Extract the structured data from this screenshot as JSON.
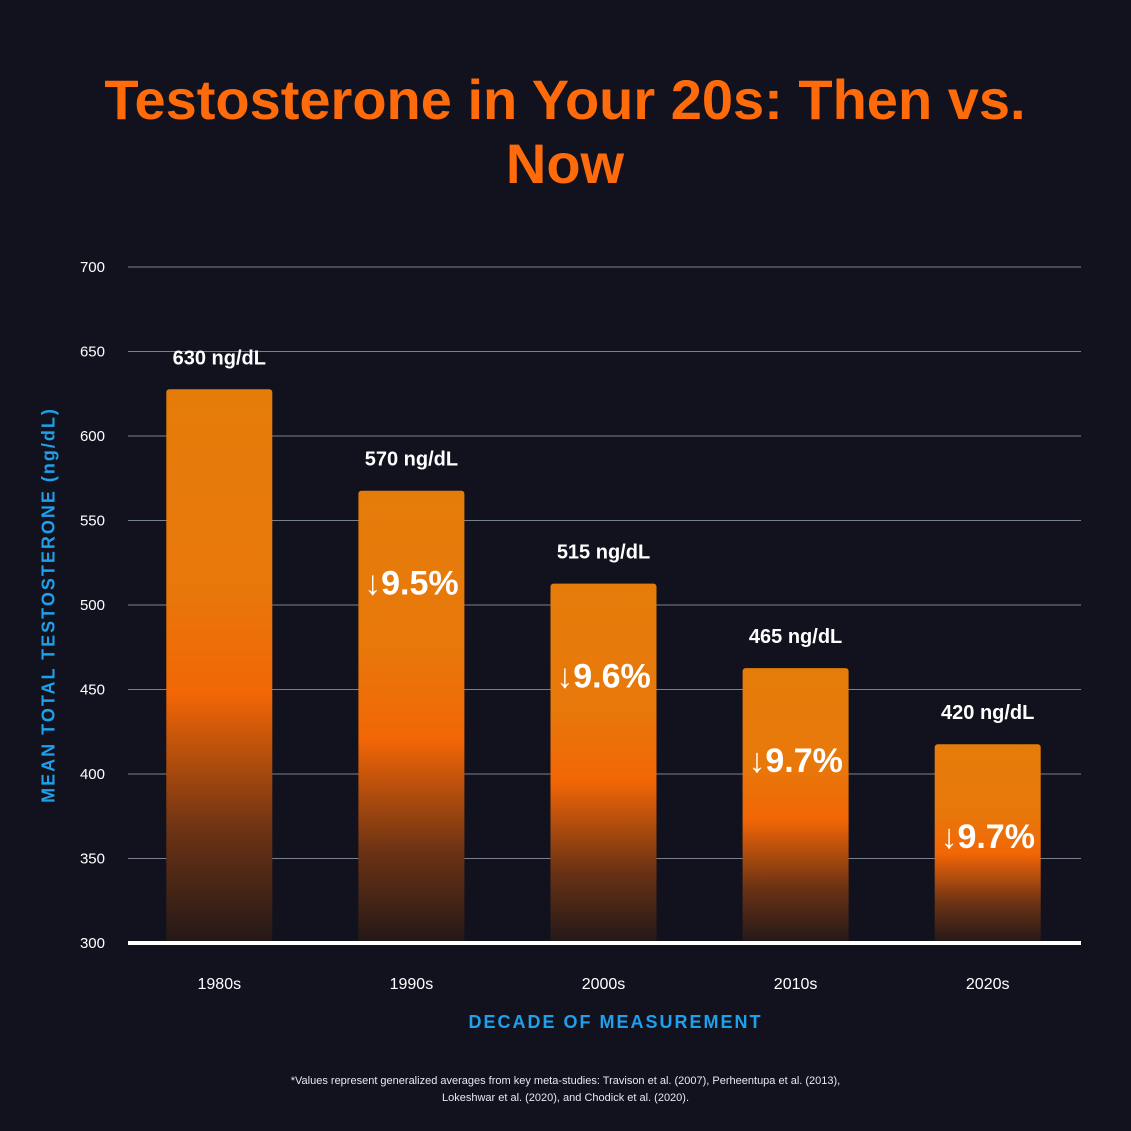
{
  "title": "Testosterone in Your 20s: Then vs. Now",
  "colors": {
    "background": "#11121e",
    "title": "#ff6b0a",
    "axis_label": "#1ea0ec",
    "bar_top": "#e57c0a",
    "bar_mid": "#ff6a00",
    "bar_bottom": "#2a1a18",
    "grid": "#9aa7b3",
    "text": "#ffffff"
  },
  "chart_data": {
    "type": "bar",
    "title": "Testosterone in Your 20s: Then vs. Now",
    "xlabel": "DECADE OF MEASUREMENT",
    "ylabel": "MEAN TOTAL TESTOSTERONE (ng/dL)",
    "categories": [
      "1980s",
      "1990s",
      "2000s",
      "2010s",
      "2020s"
    ],
    "values": [
      630,
      570,
      515,
      465,
      420
    ],
    "value_labels": [
      "630 ng/dL",
      "570 ng/dL",
      "515 ng/dL",
      "465 ng/dL",
      "420 ng/dL"
    ],
    "change_labels": [
      "",
      "↓9.5%",
      "↓9.6%",
      "↓9.7%",
      "↓9.7%"
    ],
    "ylim": [
      300,
      700
    ],
    "yticks": [
      300,
      350,
      400,
      450,
      500,
      550,
      600,
      650,
      700
    ],
    "grid": true,
    "legend": "none"
  },
  "footnote": {
    "line1": "*Values represent generalized averages from key meta-studies: Travison et al. (2007), Perheentupa et al. (2013),",
    "line2": "Lokeshwar et al. (2020), and Chodick et al. (2020)."
  }
}
